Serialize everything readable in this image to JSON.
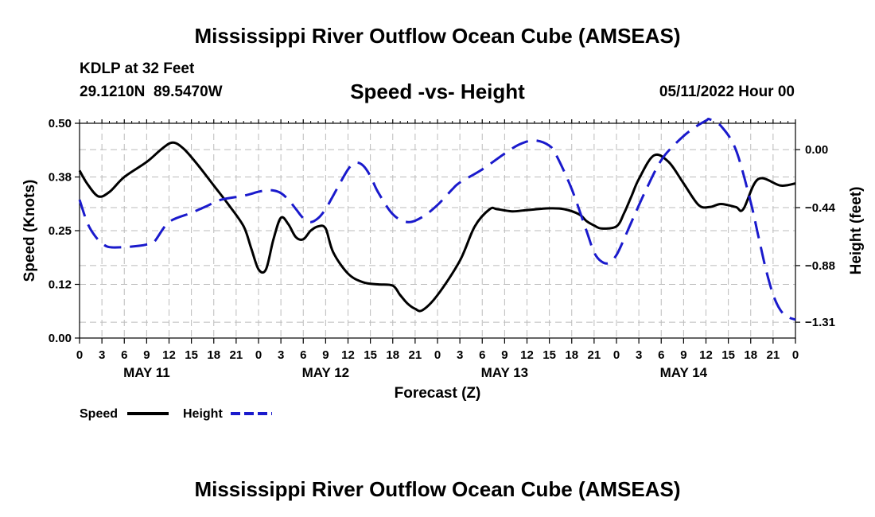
{
  "page": {
    "main_title": "Mississippi River Outflow Ocean Cube (AMSEAS)",
    "station_name": "KDLP at 32 Feet",
    "station_coords": "29.1210N  89.5470W",
    "chart_subtitle": "Speed -vs- Height",
    "run_time": "05/11/2022 Hour 00",
    "bottom_title": "Mississippi River Outflow Ocean Cube (AMSEAS)"
  },
  "colors": {
    "speed": "#000000",
    "height": "#1a1acc",
    "grid": "#bbbbbb"
  },
  "chart_data": {
    "type": "line",
    "title": "Speed -vs- Height",
    "xlabel": "Forecast (Z)",
    "ylabel_left": "Speed (Knots)",
    "ylabel_right": "Height (feet)",
    "x_range_hours": [
      0,
      96
    ],
    "x_tick_step_hours": 3,
    "x_tick_labels": [
      "0",
      "3",
      "6",
      "9",
      "12",
      "15",
      "18",
      "21",
      "0",
      "3",
      "6",
      "9",
      "12",
      "15",
      "18",
      "21",
      "0",
      "3",
      "6",
      "9",
      "12",
      "15",
      "18",
      "21",
      "0",
      "3",
      "6",
      "9",
      "12",
      "15",
      "18",
      "21",
      "0"
    ],
    "day_labels": [
      {
        "label": "MAY 11",
        "hour": 9
      },
      {
        "label": "MAY 12",
        "hour": 33
      },
      {
        "label": "MAY 13",
        "hour": 57
      },
      {
        "label": "MAY 14",
        "hour": 81
      }
    ],
    "ylim_left": [
      0,
      0.5
    ],
    "yticks_left": [
      0.0,
      0.125,
      0.25,
      0.375,
      0.5
    ],
    "yticks_left_labels": [
      "0.00",
      "0.12",
      "0.25",
      "0.38",
      "0.50"
    ],
    "ylim_right": [
      -1.43,
      0.2
    ],
    "yticks_right": [
      -1.31,
      -0.88,
      -0.44,
      0.0
    ],
    "yticks_right_labels": [
      "−1.31",
      "−0.88",
      "−0.44",
      "0.00"
    ],
    "legend": [
      {
        "name": "Speed",
        "style": "solid"
      },
      {
        "name": "Height",
        "style": "dashed"
      }
    ],
    "series": [
      {
        "name": "Speed",
        "axis": "left",
        "style": "solid",
        "x": [
          0,
          1,
          2.5,
          4,
          6,
          9,
          11,
          12.5,
          14,
          16,
          18,
          20,
          22,
          23,
          24,
          25,
          26,
          27,
          28,
          29,
          30,
          31,
          32,
          33,
          34,
          36,
          38,
          40,
          42,
          43,
          44,
          45,
          46,
          48,
          51,
          53,
          55,
          56,
          58,
          60,
          63,
          65,
          67,
          68,
          69,
          70,
          72,
          73,
          74,
          75,
          77,
          79,
          81,
          83,
          84.5,
          86,
          88,
          89,
          91,
          94,
          96
        ],
        "values": [
          0.39,
          0.36,
          0.33,
          0.34,
          0.375,
          0.41,
          0.44,
          0.455,
          0.44,
          0.4,
          0.355,
          0.31,
          0.26,
          0.21,
          0.16,
          0.16,
          0.23,
          0.28,
          0.265,
          0.235,
          0.23,
          0.25,
          0.26,
          0.255,
          0.2,
          0.15,
          0.13,
          0.125,
          0.122,
          0.1,
          0.08,
          0.068,
          0.065,
          0.1,
          0.18,
          0.26,
          0.3,
          0.3,
          0.295,
          0.298,
          0.302,
          0.3,
          0.288,
          0.272,
          0.262,
          0.255,
          0.26,
          0.29,
          0.33,
          0.37,
          0.425,
          0.41,
          0.36,
          0.31,
          0.305,
          0.312,
          0.305,
          0.3,
          0.37,
          0.355,
          0.36
        ]
      },
      {
        "name": "Height",
        "axis": "right",
        "style": "dashed",
        "x": [
          0,
          1,
          2,
          3,
          4,
          6,
          8,
          9,
          10,
          12,
          15,
          17,
          19,
          22,
          24,
          25,
          26,
          27,
          28,
          29,
          30,
          31,
          32,
          33,
          34,
          36,
          37,
          38,
          39,
          40,
          42,
          44,
          46,
          48,
          50,
          51,
          54,
          57,
          59,
          61,
          63,
          64,
          66,
          68,
          69,
          70,
          71,
          72,
          73,
          74,
          76,
          78,
          80,
          82,
          84,
          84.5,
          86,
          88,
          90,
          91,
          92,
          93,
          94,
          95,
          96
        ],
        "values": [
          -0.38,
          -0.55,
          -0.65,
          -0.71,
          -0.74,
          -0.74,
          -0.73,
          -0.72,
          -0.7,
          -0.55,
          -0.48,
          -0.43,
          -0.38,
          -0.35,
          -0.32,
          -0.31,
          -0.31,
          -0.33,
          -0.38,
          -0.45,
          -0.52,
          -0.55,
          -0.52,
          -0.45,
          -0.35,
          -0.15,
          -0.1,
          -0.12,
          -0.2,
          -0.32,
          -0.49,
          -0.55,
          -0.51,
          -0.42,
          -0.3,
          -0.25,
          -0.15,
          -0.03,
          0.04,
          0.07,
          0.03,
          -0.05,
          -0.3,
          -0.62,
          -0.78,
          -0.85,
          -0.86,
          -0.8,
          -0.68,
          -0.55,
          -0.3,
          -0.08,
          0.05,
          0.15,
          0.22,
          0.23,
          0.18,
          0.0,
          -0.4,
          -0.65,
          -0.9,
          -1.1,
          -1.22,
          -1.27,
          -1.29
        ]
      }
    ]
  }
}
